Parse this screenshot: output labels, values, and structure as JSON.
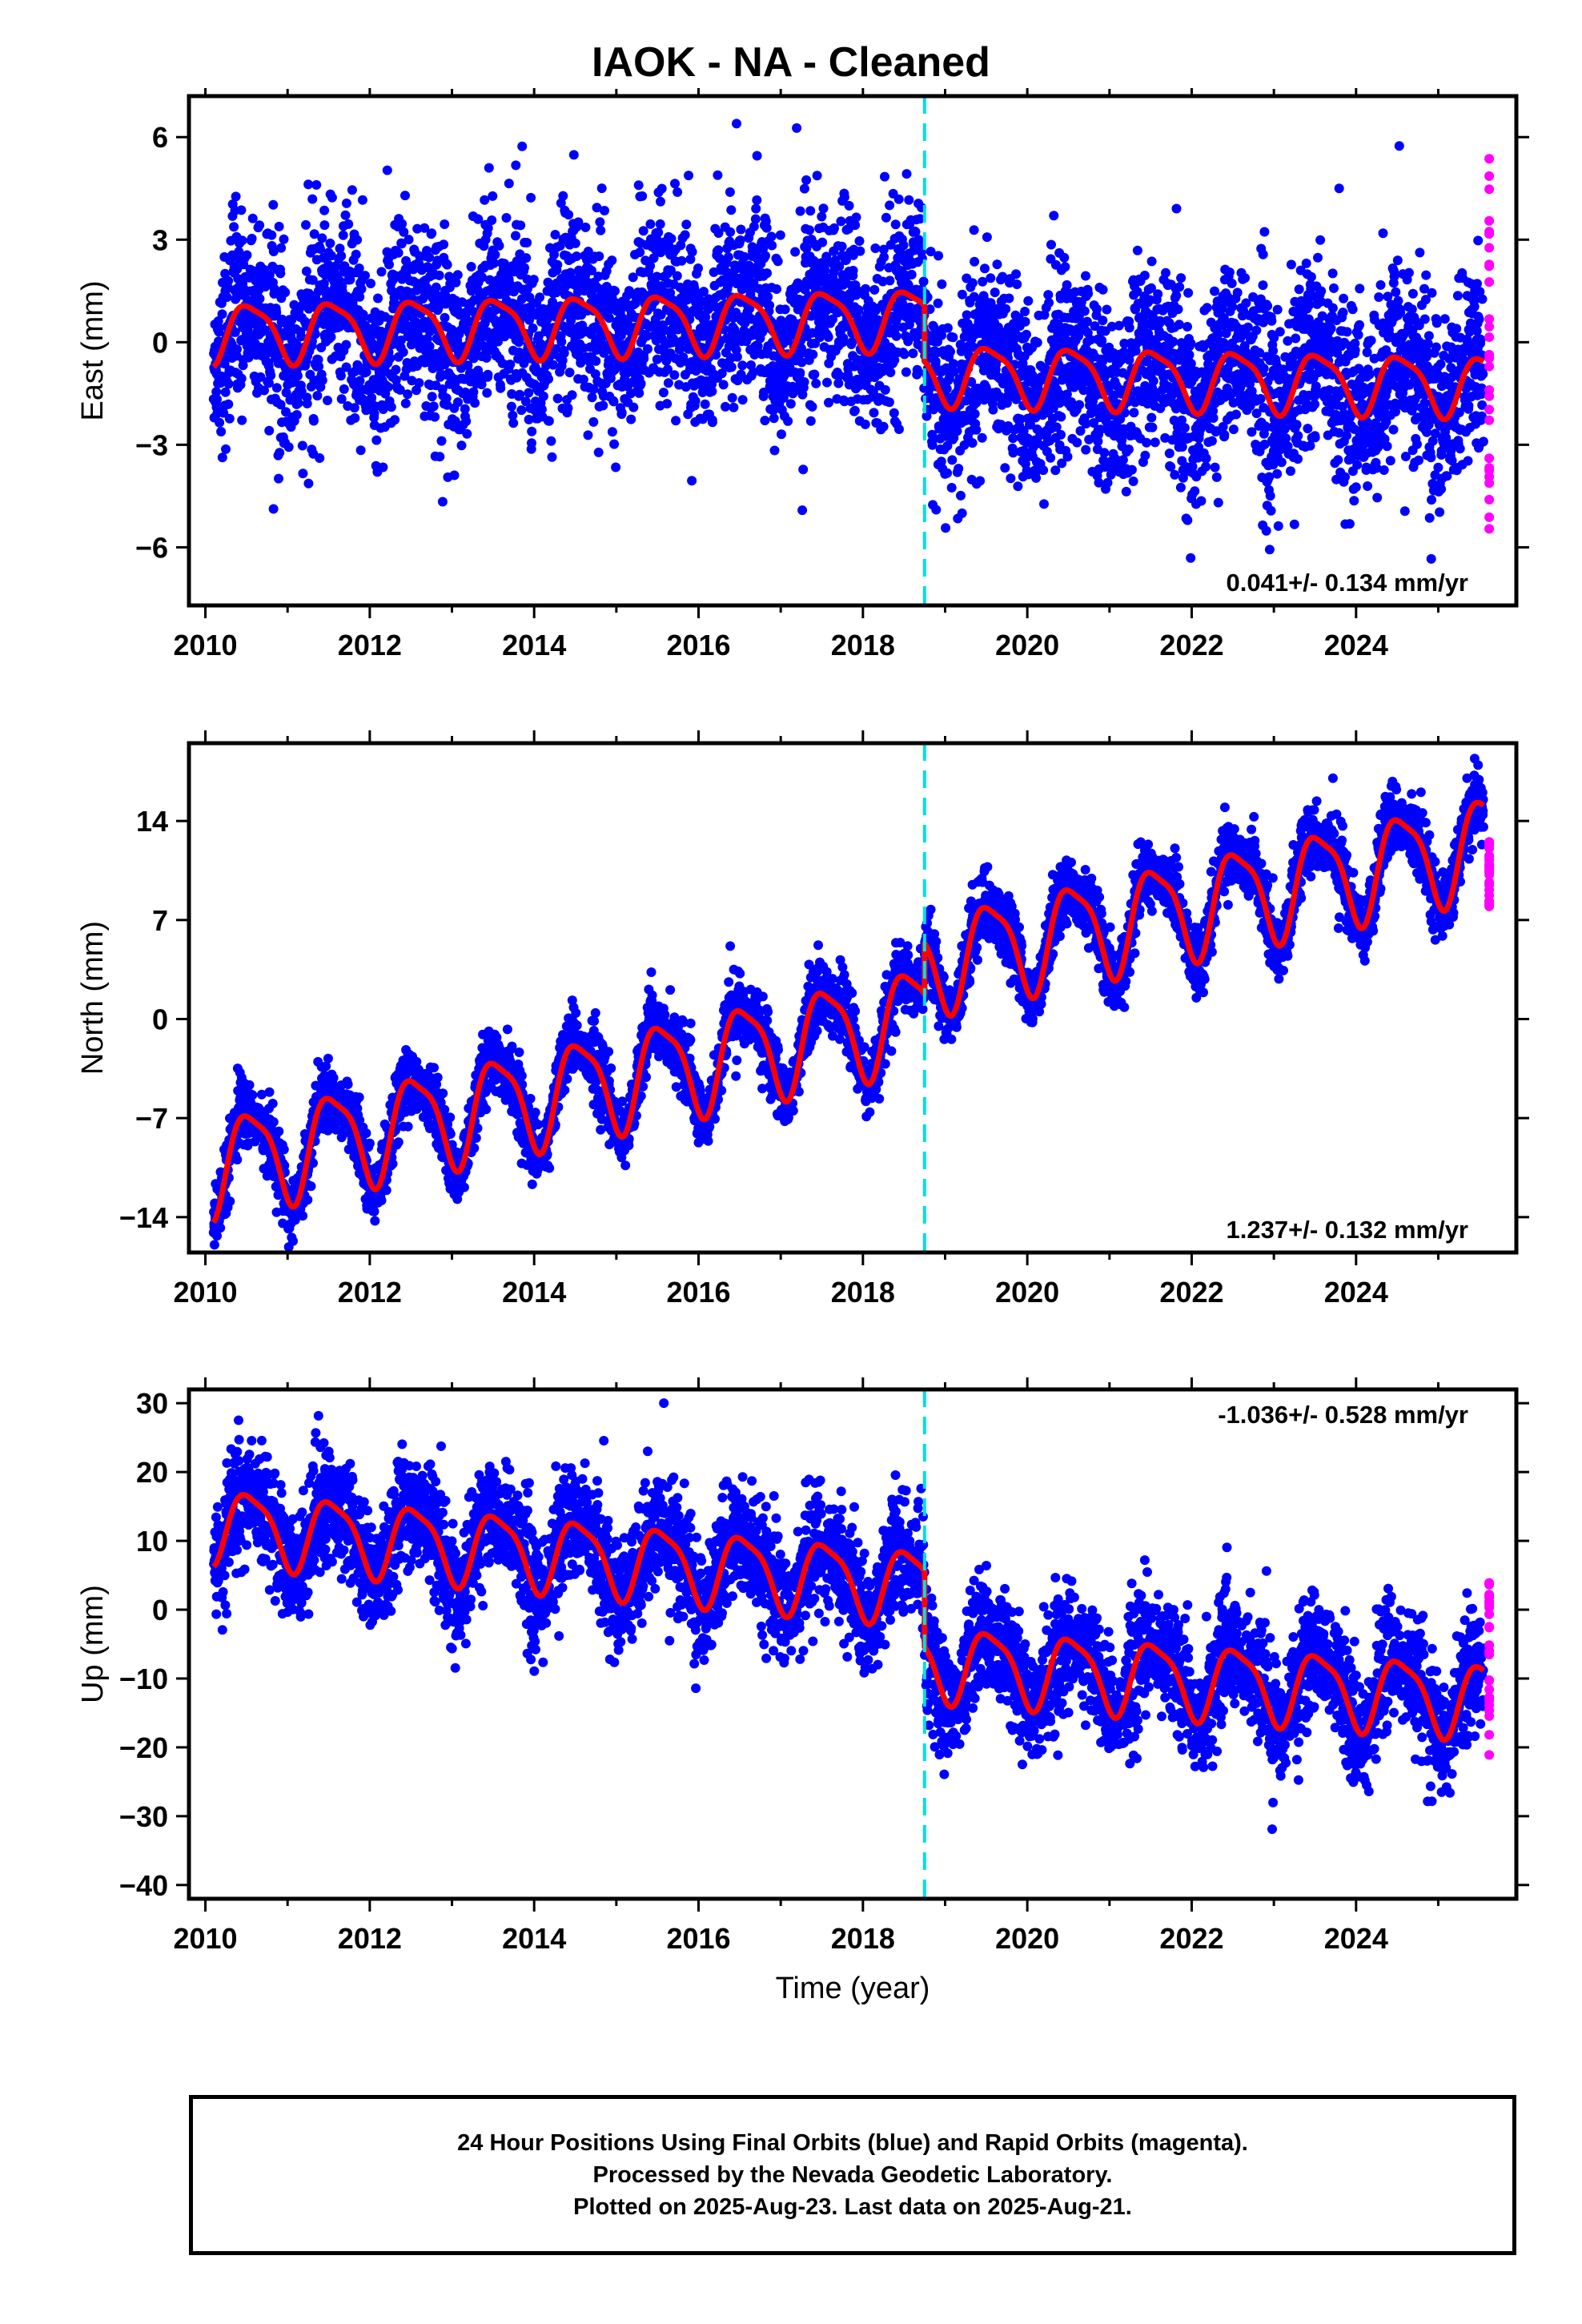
{
  "page": {
    "title": "IAOK  - NA - Cleaned",
    "xlabel": "Time (year)",
    "footer": [
      "24 Hour Positions Using Final Orbits (blue) and Rapid Orbits (magenta).",
      "Processed by the Nevada Geodetic Laboratory.",
      "Plotted on 2025-Aug-23. Last data on 2025-Aug-21."
    ]
  },
  "colors": {
    "final": "#0000ff",
    "rapid": "#ff00ff",
    "model": "#ff0000",
    "offset": "#00e0e0",
    "frame": "#000000"
  },
  "chart_data": [
    {
      "type": "scatter",
      "title": "IAOK  - NA - Cleaned",
      "ylabel": "East (mm)",
      "xlabel": "",
      "xlim": [
        2009.8,
        2025.95
      ],
      "ylim": [
        -7.7,
        7.2
      ],
      "xticks": [
        "2010",
        "2012",
        "2014",
        "2016",
        "2018",
        "2020",
        "2022",
        "2024"
      ],
      "yticks": [
        "6",
        "3",
        "0",
        "-3",
        "-6"
      ],
      "rate_label": "0.041+/- 0.134 mm/yr",
      "rate_position": "bottom-right",
      "offset_epoch": 2018.75,
      "series": [
        {
          "role": "final",
          "x_range": [
            2010.1,
            2025.55
          ],
          "model_before": {
            "level_start": 0.3,
            "rate": 0.05
          },
          "model_after": {
            "level_start": -0.9,
            "rate": -0.05
          },
          "annual_amplitude": 0.85,
          "scatter_sd": 1.3
        },
        {
          "role": "rapid",
          "x": 2025.62,
          "y_range": [
            -5.9,
            5.6
          ]
        }
      ]
    },
    {
      "type": "scatter",
      "ylabel": "North (mm)",
      "xlabel": "",
      "xlim": [
        2009.8,
        2025.95
      ],
      "ylim": [
        -16.5,
        19.5
      ],
      "xticks": [
        "2010",
        "2012",
        "2014",
        "2016",
        "2018",
        "2020",
        "2022",
        "2024"
      ],
      "yticks": [
        "14",
        "7",
        "0",
        "-7",
        "-14"
      ],
      "rate_label": "1.237+/- 0.132 mm/yr",
      "rate_position": "bottom-right",
      "offset_epoch": 2018.75,
      "series": [
        {
          "role": "final",
          "x_range": [
            2010.1,
            2025.55
          ],
          "model_before": {
            "level_start": -10.3,
            "rate": 1.237
          },
          "model_after": {
            "level_start": 4.0,
            "rate": 1.237
          },
          "annual_amplitude": 3.4,
          "scatter_sd": 1.1
        },
        {
          "role": "rapid",
          "x": 2025.62,
          "y_range": [
            7.9,
            13.0
          ]
        }
      ]
    },
    {
      "type": "scatter",
      "ylabel": "Up (mm)",
      "xlabel": "Time (year)",
      "xlim": [
        2009.8,
        2025.95
      ],
      "ylim": [
        -42,
        32
      ],
      "xticks": [
        "2010",
        "2012",
        "2014",
        "2016",
        "2018",
        "2020",
        "2022",
        "2024"
      ],
      "yticks": [
        "30",
        "20",
        "10",
        "0",
        "-10",
        "-20",
        "-30",
        "-40"
      ],
      "rate_label": "-1.036+/- 0.528 mm/yr",
      "rate_position": "top-right",
      "offset_epoch": 2018.75,
      "series": [
        {
          "role": "final",
          "x_range": [
            2010.1,
            2025.55
          ],
          "model_before": {
            "level_start": 12.5,
            "rate": -1.036
          },
          "model_after": {
            "level_start": -7.5,
            "rate": -0.8
          },
          "annual_amplitude": 5.2,
          "scatter_sd": 4.0
        },
        {
          "role": "rapid",
          "x": 2025.62,
          "y_range": [
            -22.5,
            4.2
          ]
        }
      ]
    }
  ]
}
